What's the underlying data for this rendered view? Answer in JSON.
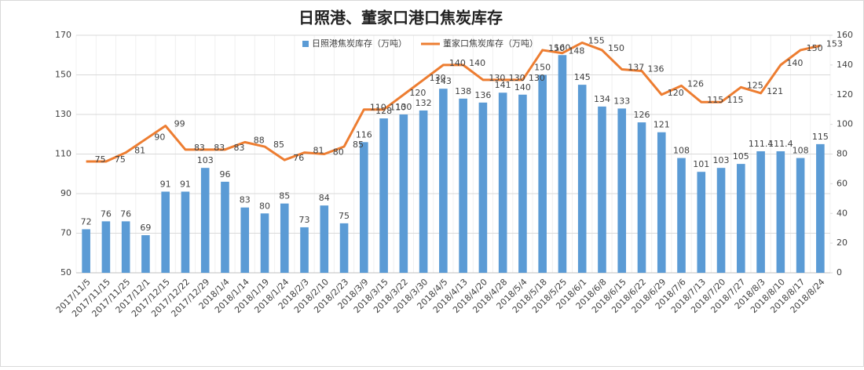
{
  "chart_data": {
    "type": "bar-line",
    "title": "日照港、董家口港口焦炭库存",
    "categories": [
      "2017/11/5",
      "2017/11/15",
      "2017/11/25",
      "2017/12/1",
      "2017/12/15",
      "2017/12/22",
      "2017/12/29",
      "2018/1/4",
      "2018/1/14",
      "2018/1/19",
      "2018/1/24",
      "2018/2/3",
      "2018/2/10",
      "2018/2/23",
      "2018/3/9",
      "2018/3/15",
      "2018/3/22",
      "2018/3/30",
      "2018/4/5",
      "2018/4/13",
      "2018/4/20",
      "2018/4/28",
      "2018/5/4",
      "2018/5/18",
      "2018/5/25",
      "2018/6/1",
      "2018/6/8",
      "2018/6/15",
      "2018/6/22",
      "2018/6/29",
      "2018/7/6",
      "2018/7/13",
      "2018/7/20",
      "2018/7/27",
      "2018/8/3",
      "2018/8/10",
      "2018/8/17",
      "2018/8/24"
    ],
    "series": [
      {
        "name": "日照港焦炭库存（万吨）",
        "color": "#5b9bd5",
        "kind": "bar",
        "values": [
          72,
          76,
          76,
          69,
          91,
          91,
          103,
          96,
          83,
          80,
          85,
          73,
          84,
          75,
          116,
          128,
          130,
          132,
          143,
          138,
          136,
          141,
          140,
          150,
          160,
          145,
          134,
          133,
          126,
          121,
          108,
          101,
          103,
          105,
          111.4,
          111.4,
          108,
          115
        ]
      },
      {
        "name": "董家口焦炭库存（万吨）",
        "color": "#ed7d31",
        "kind": "line",
        "axis": "y2",
        "values": [
          75,
          75,
          81,
          90,
          99,
          83,
          83,
          83,
          88,
          85,
          76,
          81,
          80,
          85,
          110,
          110,
          120,
          130,
          140,
          140,
          130,
          130,
          130,
          150,
          148,
          155,
          150,
          137,
          136,
          120,
          126,
          115,
          115,
          125,
          121,
          140,
          150,
          153
        ]
      }
    ],
    "ylim": [
      50,
      170
    ],
    "yticks": [
      50,
      70,
      90,
      110,
      130,
      150,
      170
    ],
    "y2lim": [
      0,
      160
    ],
    "y2ticks": [
      0,
      20,
      40,
      60,
      80,
      100,
      120,
      140,
      160
    ],
    "grid": true,
    "legend": "top"
  }
}
